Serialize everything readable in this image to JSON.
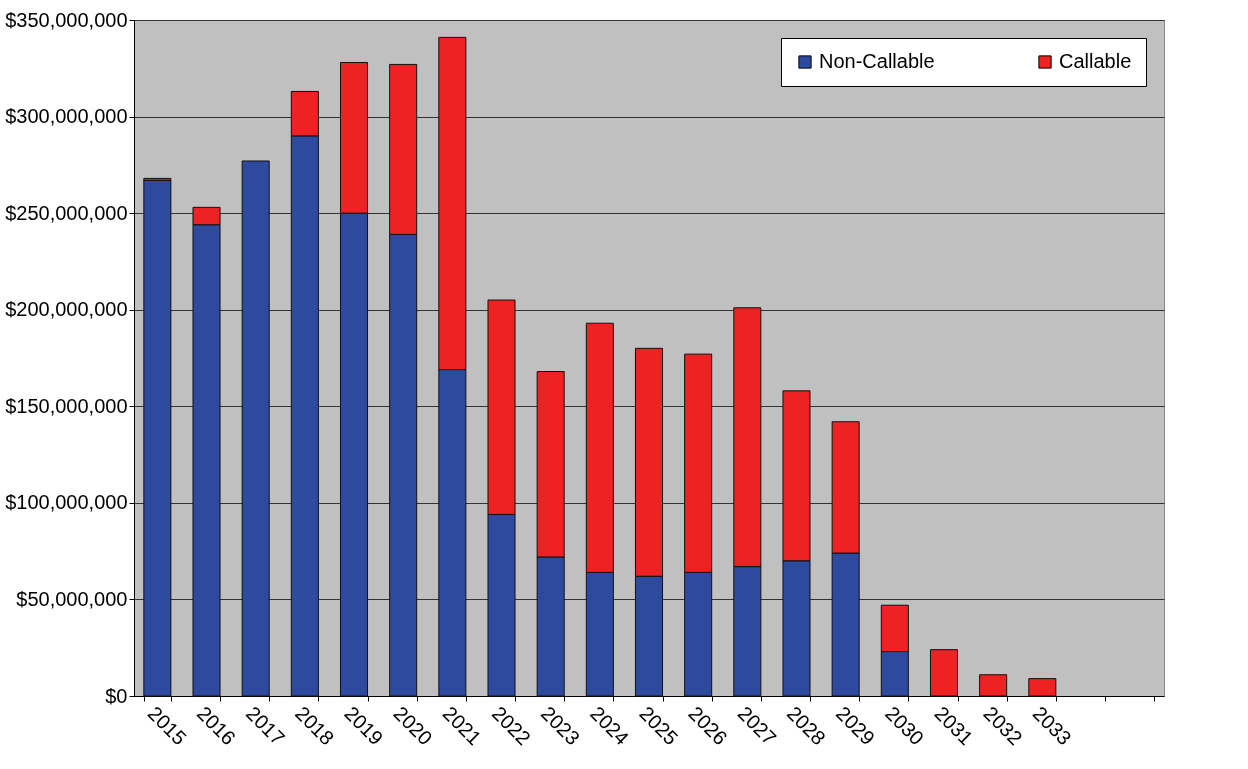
{
  "chart_data": {
    "type": "bar",
    "stacked": true,
    "categories": [
      "2015",
      "2016",
      "2017",
      "2018",
      "2019",
      "2020",
      "2021",
      "2022",
      "2023",
      "2024",
      "2025",
      "2026",
      "2027",
      "2028",
      "2029",
      "2030",
      "2031",
      "2032",
      "2033",
      null,
      null
    ],
    "series": [
      {
        "name": "Non-Callable",
        "color": "#2e4a9e",
        "values": [
          267000000,
          244000000,
          277000000,
          290000000,
          250000000,
          239000000,
          169000000,
          94000000,
          72000000,
          64000000,
          62000000,
          64000000,
          67000000,
          70000000,
          74000000,
          23000000,
          0,
          0,
          0,
          null,
          null
        ]
      },
      {
        "name": "Callable",
        "color": "#ee2222",
        "values": [
          1000000,
          9000000,
          0,
          23000000,
          78000000,
          88000000,
          172000000,
          111000000,
          96000000,
          129000000,
          118000000,
          113000000,
          134000000,
          88000000,
          68000000,
          24000000,
          24000000,
          11000000,
          9000000,
          null,
          null
        ]
      }
    ],
    "ylim": [
      0,
      350000000
    ],
    "yticks": [
      {
        "value": 0,
        "label": "$0"
      },
      {
        "value": 50000000,
        "label": "$50,000,000"
      },
      {
        "value": 100000000,
        "label": "$100,000,000"
      },
      {
        "value": 150000000,
        "label": "$150,000,000"
      },
      {
        "value": 200000000,
        "label": "$200,000,000"
      },
      {
        "value": 250000000,
        "label": "$250,000,000"
      },
      {
        "value": 300000000,
        "label": "$300,000,000"
      },
      {
        "value": 350000000,
        "label": "$350,000,000"
      }
    ],
    "grid": "y",
    "legend": "top right"
  }
}
